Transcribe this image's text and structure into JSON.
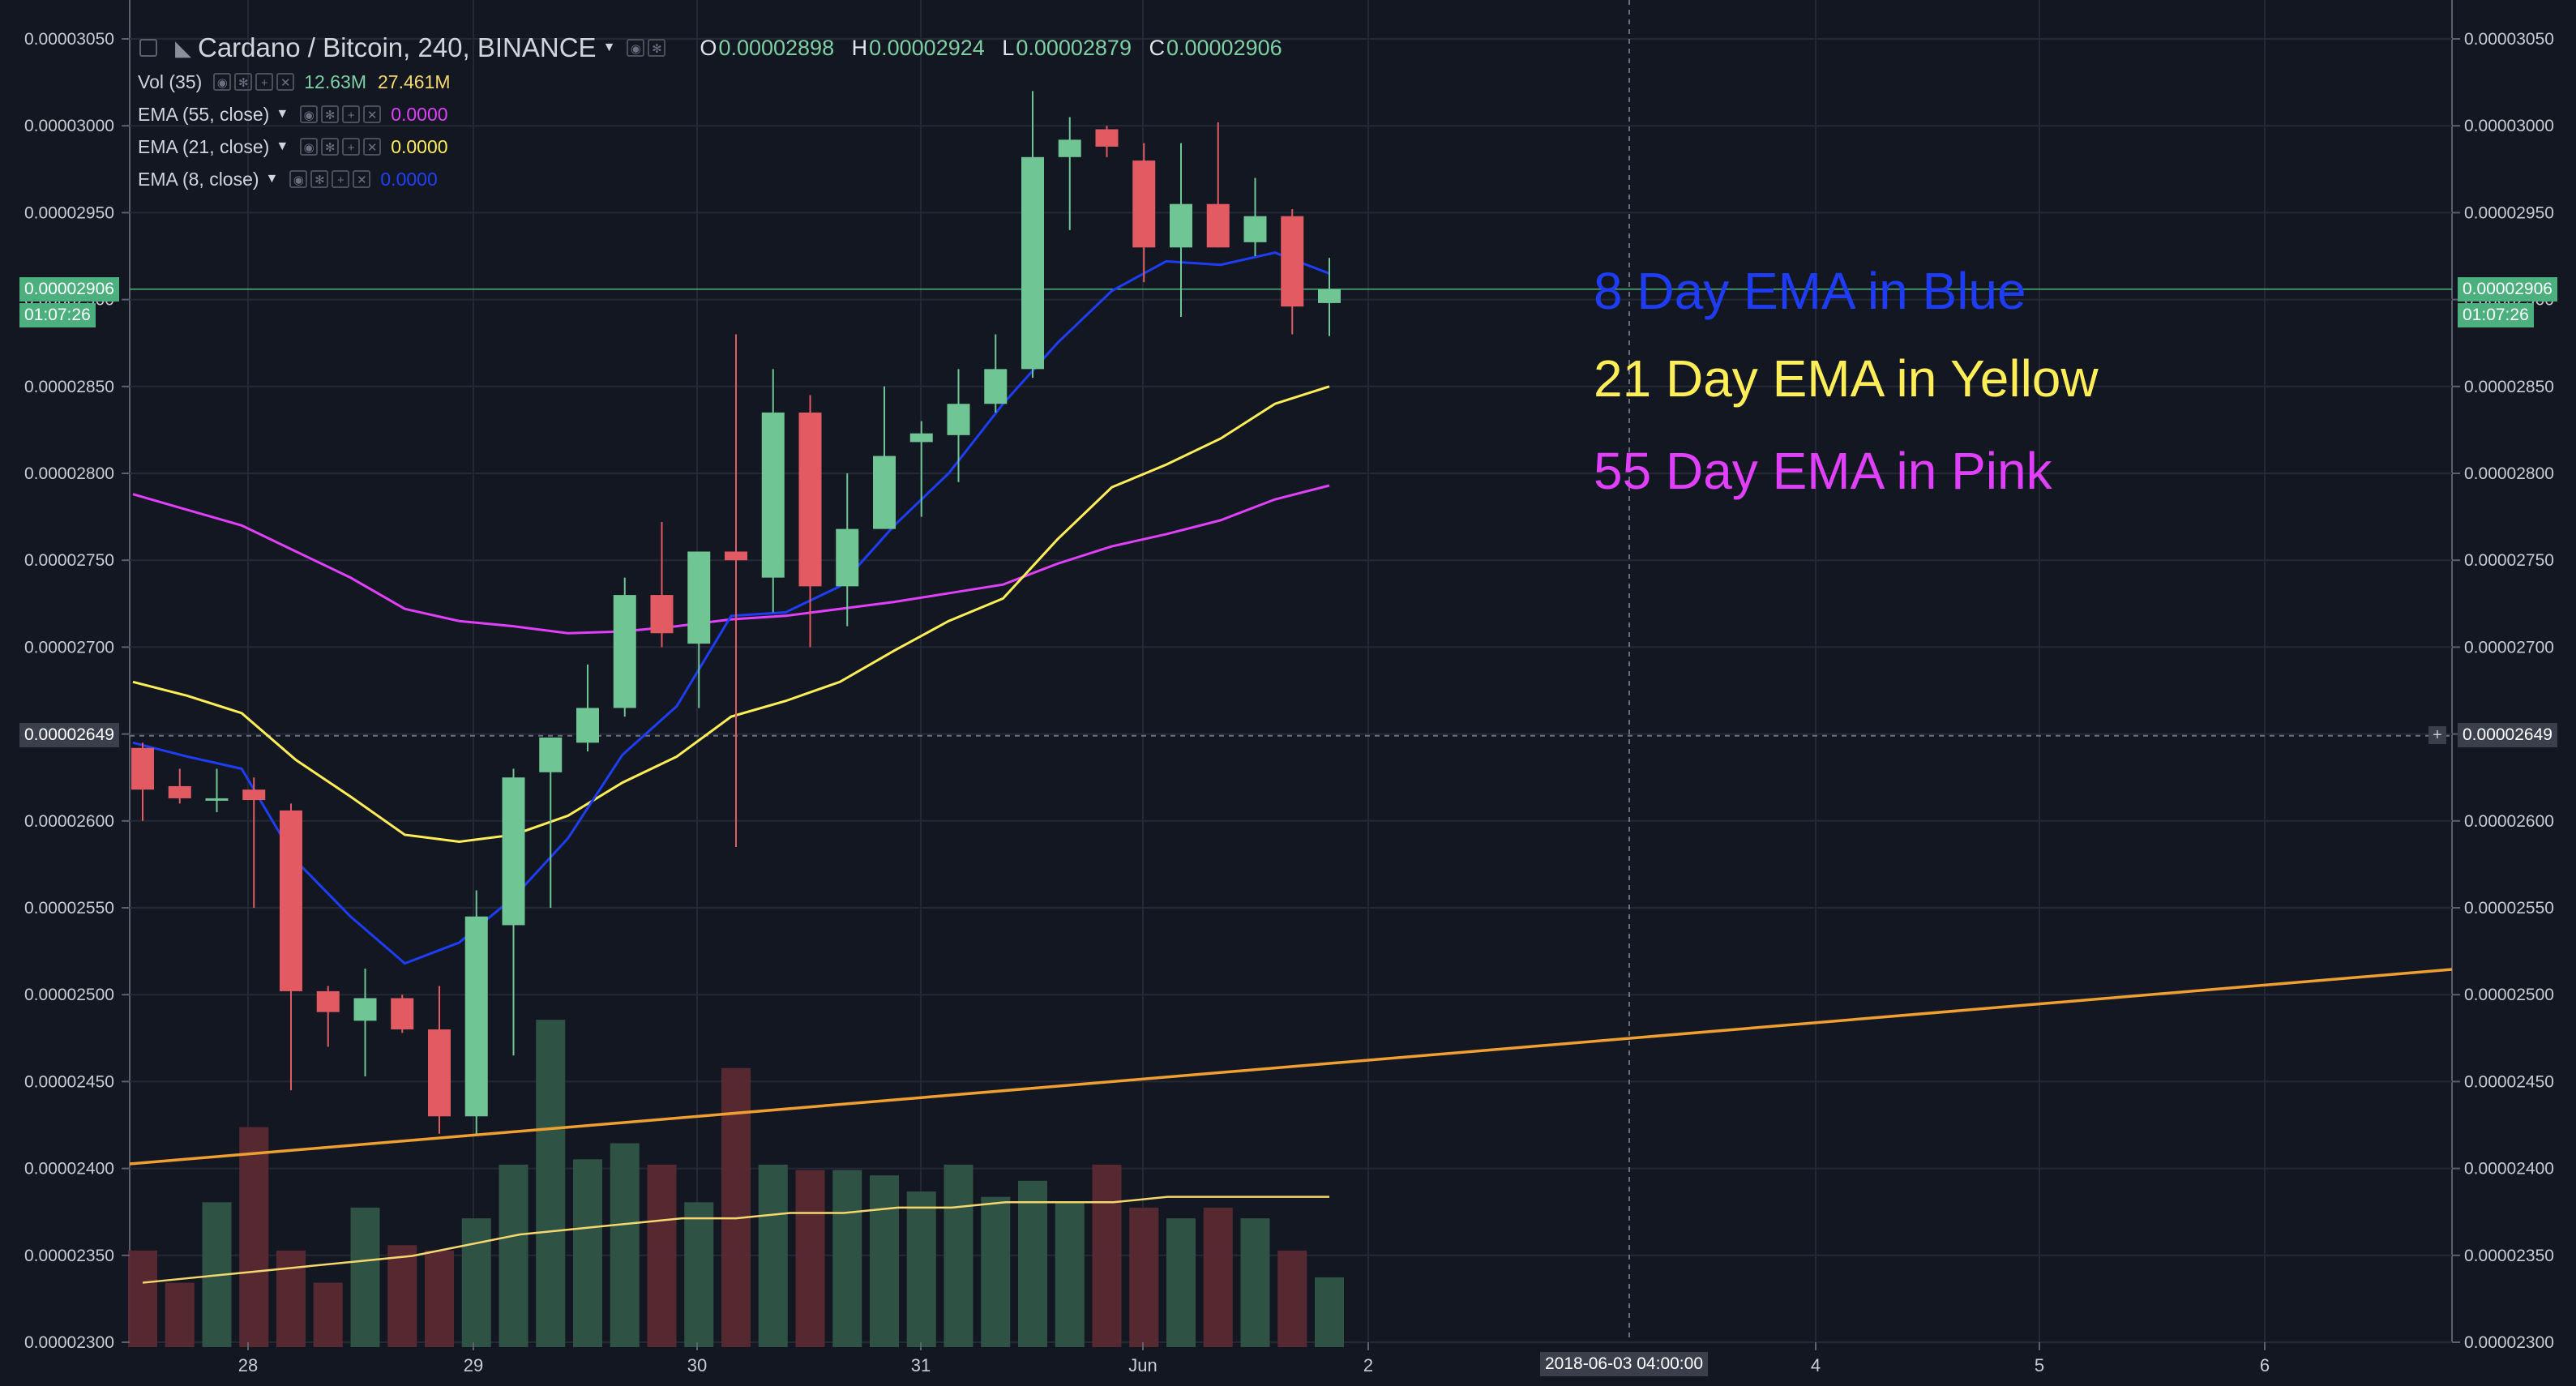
{
  "header": {
    "symbol_title": "Cardano / Bitcoin, 240, BINANCE",
    "ohlc": [
      {
        "label": "O",
        "value": "0.00002898"
      },
      {
        "label": "H",
        "value": "0.00002924"
      },
      {
        "label": "L",
        "value": "0.00002879"
      },
      {
        "label": "C",
        "value": "0.00002906"
      }
    ]
  },
  "legend": [
    {
      "label": "Vol (35)",
      "values": [
        "12.63M",
        "27.461M"
      ],
      "colors": [
        "#7ed0a3",
        "#f5d76e"
      ]
    },
    {
      "label": "EMA (55, close)",
      "values": [
        "0.0000"
      ],
      "colors": [
        "#e040fb"
      ]
    },
    {
      "label": "EMA (21, close)",
      "values": [
        "0.0000"
      ],
      "colors": [
        "#ffee58"
      ]
    },
    {
      "label": "EMA (8, close)",
      "values": [
        "0.0000"
      ],
      "colors": [
        "#1e40ff"
      ]
    }
  ],
  "annotations": [
    {
      "text": "8 Day EMA in Blue",
      "color": "#1f3cf5"
    },
    {
      "text": "21 Day EMA in Yellow",
      "color": "#ffee58"
    },
    {
      "text": "55 Day EMA in Pink",
      "color": "#e040fb"
    }
  ],
  "price_tags": {
    "last_price": "0.00002906",
    "countdown": "01:07:26",
    "crosshair_price": "0.00002649",
    "crosshair_time": "2018-06-03 04:00:00"
  },
  "colors": {
    "background": "#131722",
    "up": "#6fc593",
    "down": "#e25b62",
    "trendline": "#f0a030"
  },
  "chart_data": {
    "type": "candlestick",
    "title": "Cardano / Bitcoin, 240, BINANCE",
    "x_ticks": [
      "28",
      "29",
      "30",
      "31",
      "Jun",
      "2",
      "4",
      "5",
      "6"
    ],
    "y_ticks": [
      "0.00002300",
      "0.00002350",
      "0.00002400",
      "0.00002450",
      "0.00002500",
      "0.00002550",
      "0.00002600",
      "0.00002650",
      "0.00002700",
      "0.00002750",
      "0.00002800",
      "0.00002850",
      "0.00002900",
      "0.00002950",
      "0.00003000",
      "0.00003050"
    ],
    "ylim": [
      2.3e-05,
      3.06e-05
    ],
    "candles": [
      [
        2.642e-05,
        2.645e-05,
        2.6e-05,
        2.618e-05
      ],
      [
        2.62e-05,
        2.63e-05,
        2.61e-05,
        2.613e-05
      ],
      [
        2.612e-05,
        2.63e-05,
        2.605e-05,
        2.613e-05
      ],
      [
        2.618e-05,
        2.625e-05,
        2.55e-05,
        2.612e-05
      ],
      [
        2.606e-05,
        2.61e-05,
        2.445e-05,
        2.502e-05
      ],
      [
        2.502e-05,
        2.505e-05,
        2.47e-05,
        2.49e-05
      ],
      [
        2.485e-05,
        2.515e-05,
        2.453e-05,
        2.498e-05
      ],
      [
        2.498e-05,
        2.5e-05,
        2.478e-05,
        2.48e-05
      ],
      [
        2.48e-05,
        2.505e-05,
        2.42e-05,
        2.43e-05
      ],
      [
        2.43e-05,
        2.56e-05,
        2.42e-05,
        2.545e-05
      ],
      [
        2.54e-05,
        2.63e-05,
        2.465e-05,
        2.625e-05
      ],
      [
        2.628e-05,
        2.648e-05,
        2.55e-05,
        2.648e-05
      ],
      [
        2.645e-05,
        2.69e-05,
        2.64e-05,
        2.665e-05
      ],
      [
        2.665e-05,
        2.74e-05,
        2.66e-05,
        2.73e-05
      ],
      [
        2.73e-05,
        2.772e-05,
        2.7e-05,
        2.708e-05
      ],
      [
        2.702e-05,
        2.755e-05,
        2.665e-05,
        2.755e-05
      ],
      [
        2.755e-05,
        2.88e-05,
        2.585e-05,
        2.75e-05
      ],
      [
        2.74e-05,
        2.86e-05,
        2.72e-05,
        2.835e-05
      ],
      [
        2.835e-05,
        2.845e-05,
        2.7e-05,
        2.735e-05
      ],
      [
        2.735e-05,
        2.8e-05,
        2.712e-05,
        2.768e-05
      ],
      [
        2.768e-05,
        2.85e-05,
        2.77e-05,
        2.81e-05
      ],
      [
        2.818e-05,
        2.83e-05,
        2.775e-05,
        2.823e-05
      ],
      [
        2.822e-05,
        2.86e-05,
        2.795e-05,
        2.84e-05
      ],
      [
        2.84e-05,
        2.88e-05,
        2.835e-05,
        2.86e-05
      ],
      [
        2.86e-05,
        3.02e-05,
        2.855e-05,
        2.982e-05
      ],
      [
        2.982e-05,
        3.005e-05,
        2.94e-05,
        2.992e-05
      ],
      [
        2.998e-05,
        3e-05,
        2.982e-05,
        2.988e-05
      ],
      [
        2.98e-05,
        2.99e-05,
        2.91e-05,
        2.93e-05
      ],
      [
        2.93e-05,
        2.99e-05,
        2.89e-05,
        2.955e-05
      ],
      [
        2.955e-05,
        3.002e-05,
        2.93e-05,
        2.93e-05
      ],
      [
        2.933e-05,
        2.97e-05,
        2.925e-05,
        2.948e-05
      ],
      [
        2.948e-05,
        2.952e-05,
        2.88e-05,
        2.896e-05
      ],
      [
        2.898e-05,
        2.924e-05,
        2.879e-05,
        2.906e-05
      ]
    ],
    "ema8": [
      2.645e-05,
      2.637e-05,
      2.63e-05,
      2.577e-05,
      2.545e-05,
      2.518e-05,
      2.53e-05,
      2.556e-05,
      2.59e-05,
      2.638e-05,
      2.666e-05,
      2.718e-05,
      2.72e-05,
      2.735e-05,
      2.77e-05,
      2.8e-05,
      2.84e-05,
      2.875e-05,
      2.905e-05,
      2.922e-05,
      2.92e-05,
      2.927e-05,
      2.915e-05
    ],
    "ema21": [
      2.68e-05,
      2.672e-05,
      2.662e-05,
      2.635e-05,
      2.614e-05,
      2.592e-05,
      2.588e-05,
      2.592e-05,
      2.603e-05,
      2.622e-05,
      2.637e-05,
      2.66e-05,
      2.669e-05,
      2.68e-05,
      2.698e-05,
      2.715e-05,
      2.728e-05,
      2.762e-05,
      2.792e-05,
      2.805e-05,
      2.82e-05,
      2.84e-05,
      2.85e-05
    ],
    "ema55": [
      2.788e-05,
      2.779e-05,
      2.77e-05,
      2.755e-05,
      2.74e-05,
      2.722e-05,
      2.715e-05,
      2.712e-05,
      2.708e-05,
      2.709e-05,
      2.712e-05,
      2.716e-05,
      2.718e-05,
      2.722e-05,
      2.726e-05,
      2.731e-05,
      2.736e-05,
      2.748e-05,
      2.758e-05,
      2.765e-05,
      2.773e-05,
      2.785e-05,
      2.793e-05
    ],
    "ema_x": [
      "27 16:00",
      "28 00:00",
      "28 08:00",
      "28 16:00",
      "28 20:00",
      "29 00:00",
      "29 04:00",
      "29 12:00",
      "29 20:00",
      "30 04:00",
      "30 12:00",
      "30 20:00",
      "31 04:00",
      "31 08:00",
      "31 16:00",
      "31 20:00",
      "Jun 00:00",
      "Jun 04:00",
      "Jun 08:00",
      "Jun 12:00",
      "Jun 16:00",
      "1 20:00",
      "2 00:00"
    ],
    "volume": [
      0.18,
      0.12,
      0.27,
      0.41,
      0.18,
      0.12,
      0.26,
      0.19,
      0.18,
      0.24,
      0.34,
      0.61,
      0.35,
      0.38,
      0.34,
      0.27,
      0.52,
      0.34,
      0.33,
      0.33,
      0.32,
      0.29,
      0.34,
      0.28,
      0.31,
      0.27,
      0.34,
      0.26,
      0.24,
      0.26,
      0.24,
      0.18,
      0.13
    ],
    "volume_ma": [
      0.12,
      0.13,
      0.14,
      0.15,
      0.16,
      0.17,
      0.19,
      0.21,
      0.22,
      0.23,
      0.24,
      0.24,
      0.25,
      0.25,
      0.26,
      0.26,
      0.27,
      0.27,
      0.27,
      0.28,
      0.28,
      0.28,
      0.28
    ]
  }
}
